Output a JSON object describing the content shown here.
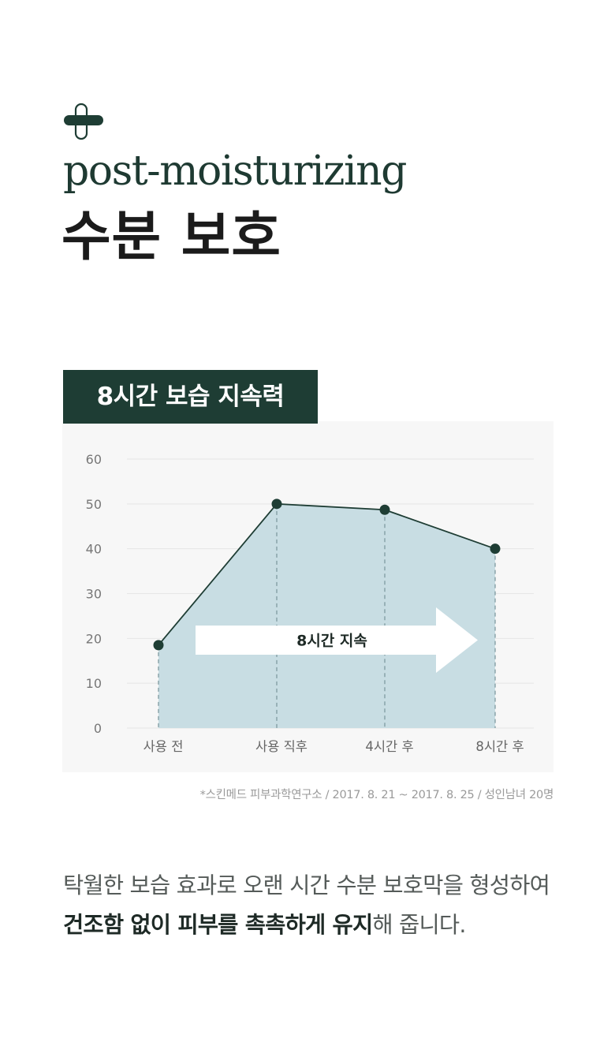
{
  "header": {
    "logo_icon": "capsule-plus-icon",
    "subtitle": "post-moisturizing",
    "title": "수분 보호"
  },
  "chart_badge": "8시간 보습 지속력",
  "chart_data": {
    "type": "area",
    "categories": [
      "사용 전",
      "사용 직후",
      "4시간 후",
      "8시간 후"
    ],
    "series": [
      {
        "values": [
          18.5,
          50,
          48.7,
          40
        ]
      }
    ],
    "yticks": [
      "0",
      "10",
      "20",
      "30",
      "40",
      "50",
      "60"
    ],
    "ylim": [
      0,
      60
    ],
    "grid": true,
    "annotation": "8시간 지속",
    "colors": {
      "area": "#c8dde3",
      "line": "#1e3d34",
      "arrow": "#ffffff"
    }
  },
  "footnote": "*스킨메드 피부과학연구소 / 2017. 8. 21 ~ 2017. 8. 25 / 성인남녀 20명",
  "description": {
    "line1": "탁월한 보습 효과로 오랜 시간 수분 보호막을 형성하여",
    "line2_bold": "건조함 없이 피부를 촉촉하게 유지",
    "line2_rest": "해 줍니다."
  }
}
